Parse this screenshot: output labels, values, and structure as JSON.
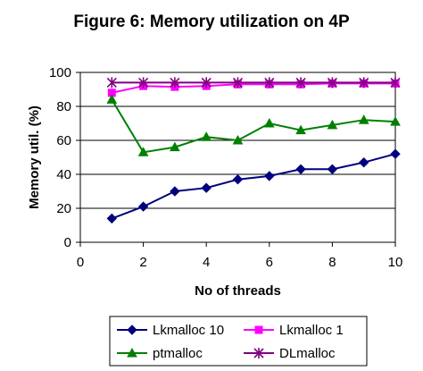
{
  "chart_data": {
    "type": "line",
    "title": "Figure 6: Memory utilization on 4P",
    "xlabel": "No of threads",
    "ylabel": "Memory util. (%)",
    "xlim": [
      0,
      10
    ],
    "ylim": [
      0,
      100
    ],
    "xticks": [
      0,
      2,
      4,
      6,
      8,
      10
    ],
    "yticks": [
      0,
      20,
      40,
      60,
      80,
      100
    ],
    "grid": "horizontal",
    "legend_position": "bottom",
    "x": [
      1,
      2,
      3,
      4,
      5,
      6,
      7,
      8,
      9,
      10
    ],
    "series": [
      {
        "name": "Lkmalloc 10",
        "color": "#00007f",
        "marker": "diamond",
        "values": [
          14,
          21,
          30,
          32,
          37,
          39,
          43,
          43,
          47,
          52
        ]
      },
      {
        "name": "Lkmalloc 1",
        "color": "#ff00ff",
        "marker": "square",
        "values": [
          88,
          92,
          91.5,
          92,
          93,
          93,
          93,
          93.5,
          93.5,
          93.5
        ]
      },
      {
        "name": "ptmalloc",
        "color": "#008000",
        "marker": "triangle",
        "values": [
          84,
          53,
          56,
          62,
          60,
          70,
          66,
          69,
          72,
          71
        ]
      },
      {
        "name": "DLmalloc",
        "color": "#800080",
        "marker": "asterisk",
        "values": [
          94,
          94,
          94,
          94,
          94,
          94,
          94,
          94,
          94,
          94
        ]
      }
    ]
  }
}
